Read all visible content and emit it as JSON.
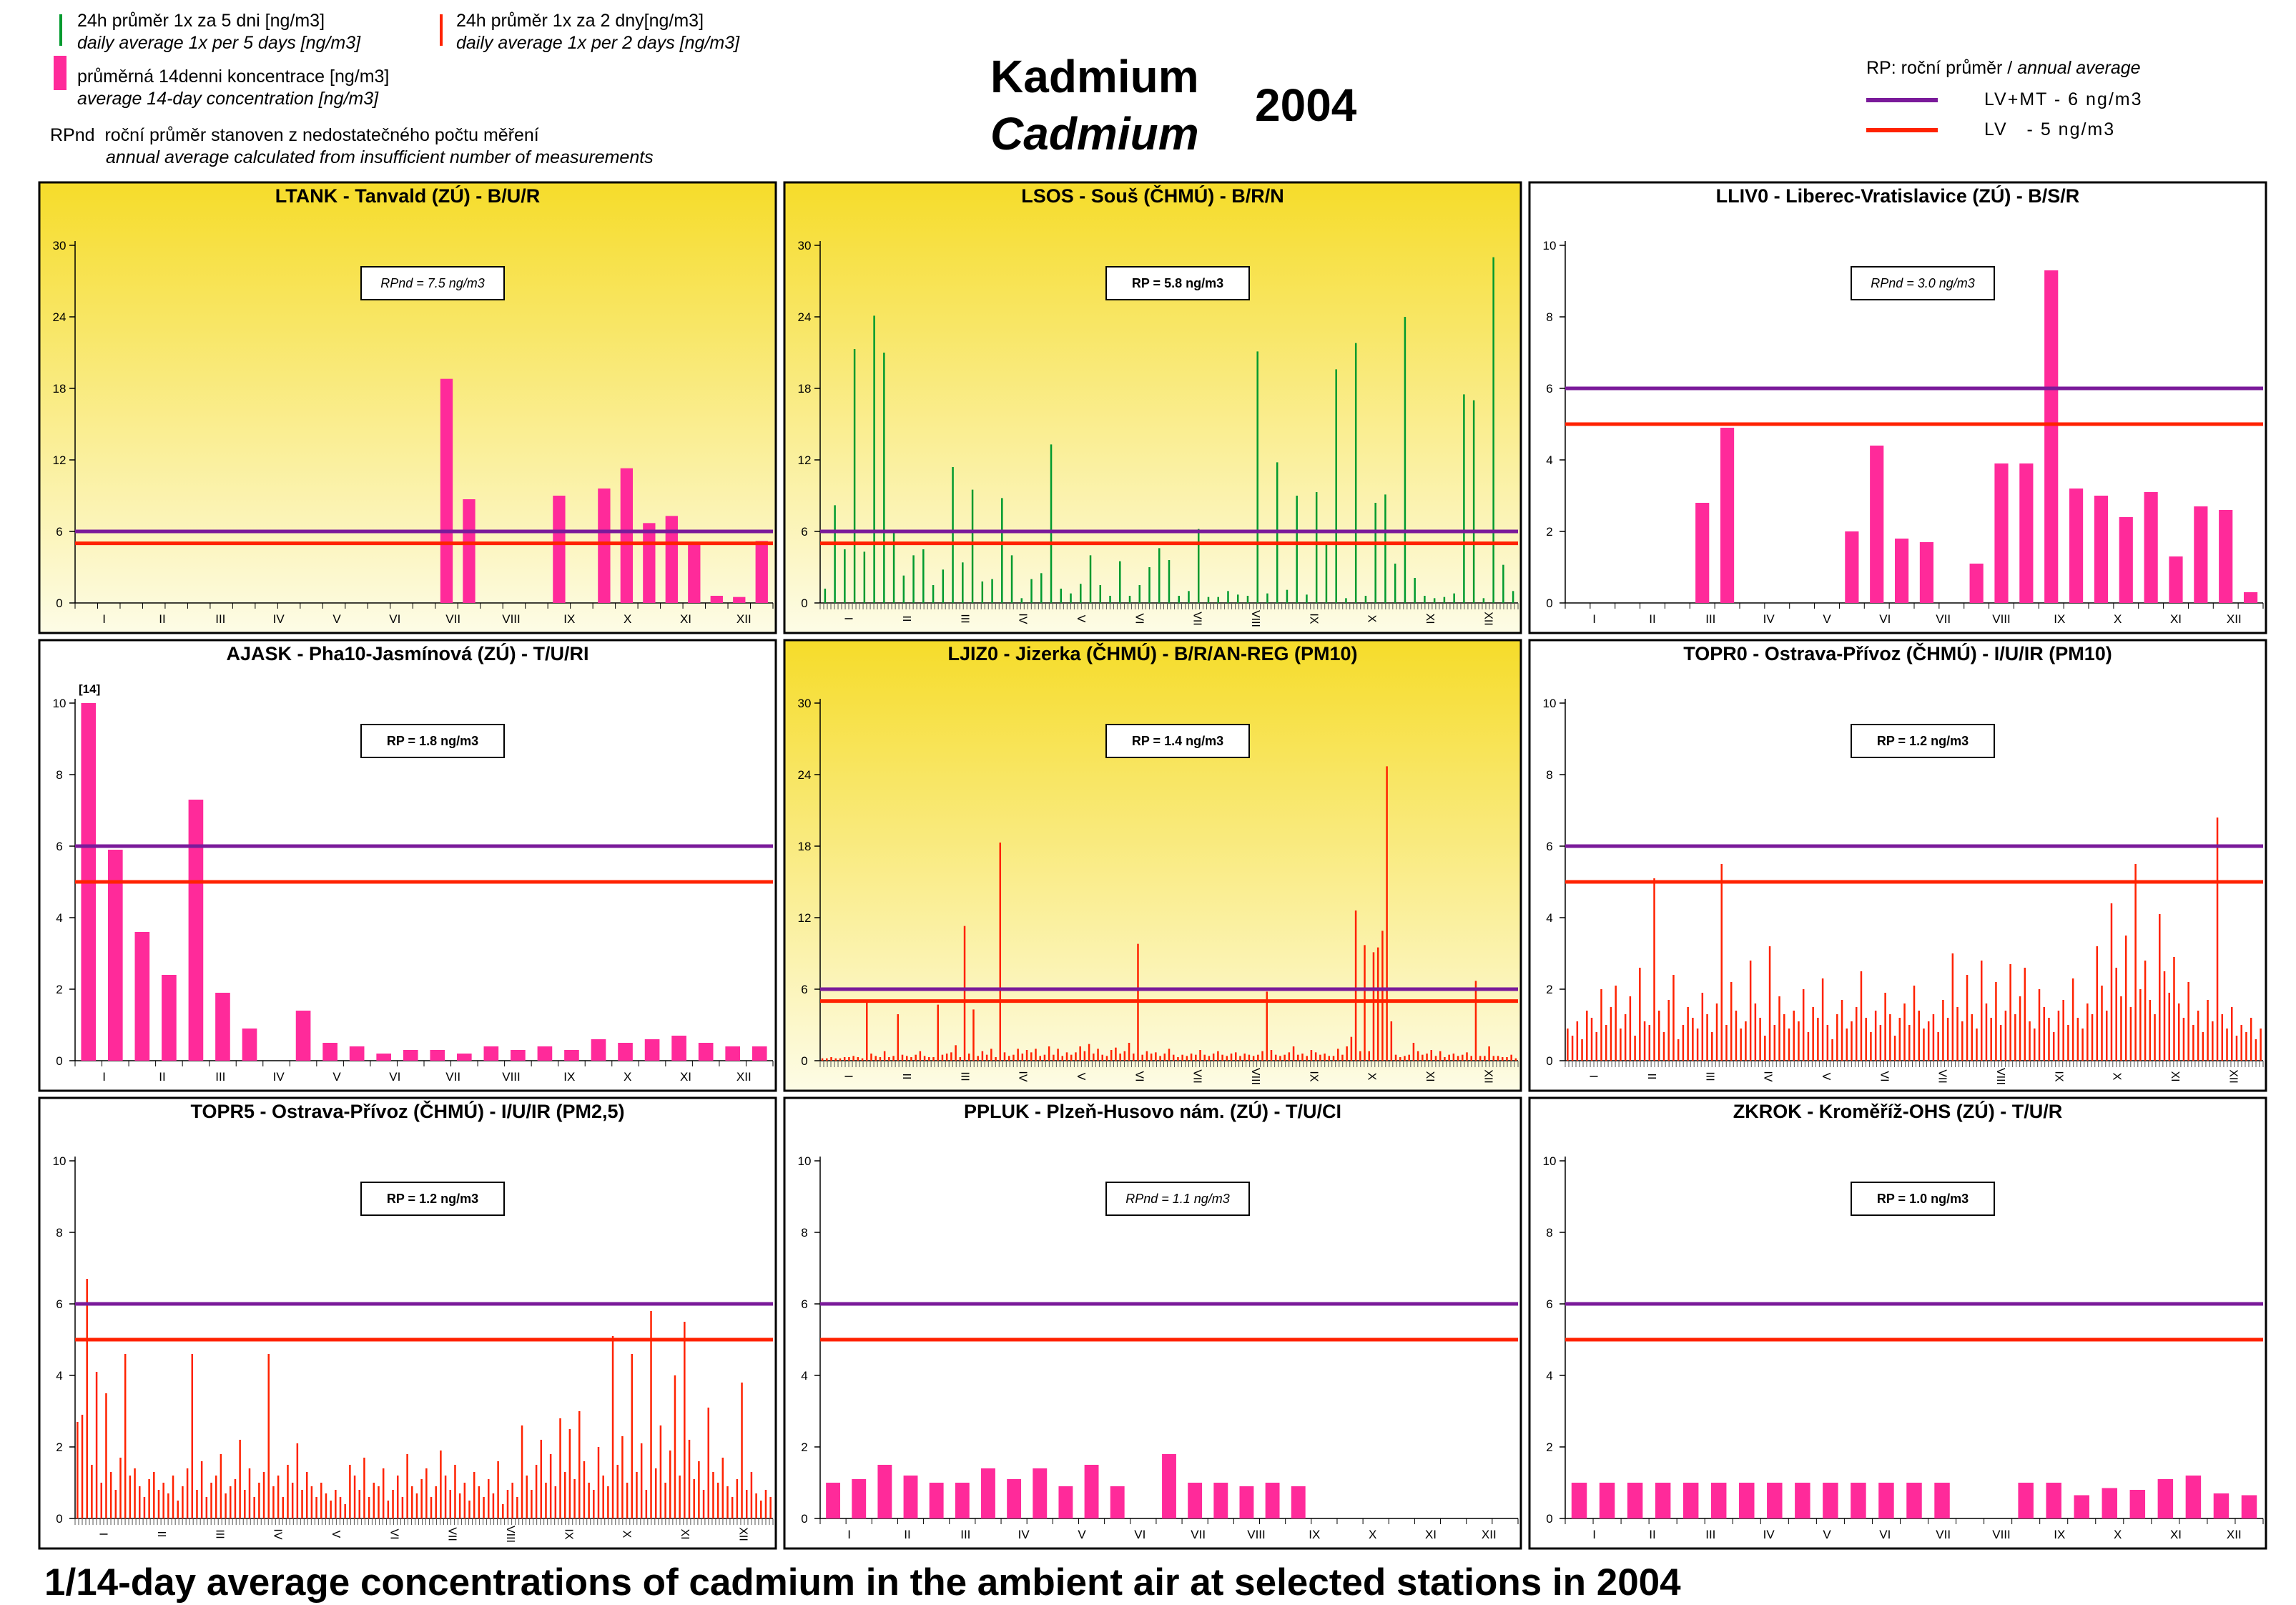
{
  "header": {
    "title_cz": "Kadmium",
    "title_en": "Cadmium",
    "year": "2004",
    "legend": {
      "green_line_cz": "24h průměr 1x za 5 dni [ng/m3]",
      "green_line_en": "daily average 1x per 5 days [ng/m3]",
      "red_line_cz": "24h průměr 1x za 2 dny[ng/m3]",
      "red_line_en": "daily average 1x per 2 days [ng/m3]",
      "bar_cz": "průměrná 14denni koncentrace [ng/m3]",
      "bar_en": "average 14-day concentration  [ng/m3]",
      "rpnd_label": "RPnd",
      "rpnd_cz": "roční průměr stanoven z nedostatečného počtu měření",
      "rpnd_en": "annual average calculated from insufficient number of measurements",
      "rp_title_cz": "RP: roční průměr",
      "rp_title_en": "annual average",
      "lv_mt_label": "LV+MT - 6 ng/m3",
      "lv_label": "LV   - 5 ng/m3"
    }
  },
  "footer": "1/14-day average concentrations of cadmium in the ambient air at selected stations in 2004",
  "colors": {
    "bar": "#ff2a9a",
    "daily_green": "#009a2e",
    "daily_red": "#ff2200",
    "lv_mt": "#7a1a9a",
    "lv": "#ff2200",
    "bg_yellow_top": "#f6dc2a",
    "bg_yellow_bottom": "#fdfce6"
  },
  "months": [
    "I",
    "II",
    "III",
    "IV",
    "V",
    "VI",
    "VII",
    "VIII",
    "IX",
    "X",
    "XI",
    "XII"
  ],
  "chart_data": [
    {
      "id": "ltank",
      "type": "bar",
      "title": "LTANK - Tanvald (ZÚ) - B/U/R",
      "rp_label": "RPnd = 7.5 ng/m3",
      "rp_italic": true,
      "background": "yellow",
      "ylim": [
        0,
        30
      ],
      "yticks": [
        0,
        6,
        12,
        18,
        24,
        30
      ],
      "limits": [
        6,
        5
      ],
      "bars": [
        null,
        null,
        null,
        null,
        null,
        null,
        null,
        null,
        null,
        null,
        null,
        null,
        null,
        null,
        null,
        null,
        18.8,
        8.7,
        null,
        null,
        null,
        9.0,
        null,
        9.6,
        11.3,
        6.7,
        7.3,
        5.0,
        0.6,
        0.5,
        5.2
      ]
    },
    {
      "id": "lsos",
      "type": "spike",
      "title": "LSOS - Souš (ČHMÚ) - B/R/N",
      "rp_label": "RP = 5.8 ng/m3",
      "rp_italic": false,
      "background": "yellow",
      "ylim": [
        0,
        30
      ],
      "yticks": [
        0,
        6,
        12,
        18,
        24,
        30
      ],
      "limits": [
        6,
        5
      ],
      "spike_color": "green",
      "label_rotate": true,
      "spikes": [
        1.2,
        8.2,
        4.5,
        21.3,
        4.3,
        24.1,
        21.0,
        6.0,
        2.3,
        4.0,
        4.5,
        1.5,
        2.8,
        11.4,
        3.4,
        9.5,
        1.8,
        2.0,
        8.8,
        4.0,
        0.4,
        2.0,
        2.5,
        13.3,
        1.2,
        0.8,
        1.6,
        4.0,
        1.5,
        0.6,
        3.5,
        0.6,
        1.5,
        3.0,
        4.6,
        3.6,
        0.6,
        1.0,
        6.2,
        0.5,
        0.5,
        1.0,
        0.7,
        0.6,
        21.1,
        0.8,
        11.8,
        1.1,
        9.0,
        0.7,
        9.3,
        5.0,
        19.6,
        0.4,
        21.8,
        0.6,
        8.4,
        9.1,
        3.3,
        24.0,
        2.1,
        0.6,
        0.4,
        0.5,
        0.8,
        17.5,
        17.0,
        0.4,
        29.0,
        3.2,
        1.0
      ]
    },
    {
      "id": "lliv0",
      "type": "bar",
      "title": "LLIV0 - Liberec-Vratislavice (ZÚ) - B/S/R",
      "rp_label": "RPnd = 3.0 ng/m3",
      "rp_italic": true,
      "background": "white",
      "ylim": [
        0,
        10
      ],
      "yticks": [
        0,
        2,
        4,
        6,
        8,
        10
      ],
      "limits": [
        6,
        5
      ],
      "bars": [
        null,
        null,
        null,
        null,
        null,
        2.8,
        4.9,
        null,
        null,
        null,
        null,
        2.0,
        4.4,
        1.8,
        1.7,
        null,
        1.1,
        3.9,
        3.9,
        9.3,
        3.2,
        3.0,
        2.4,
        3.1,
        1.3,
        2.7,
        2.6,
        0.3
      ]
    },
    {
      "id": "ajask",
      "type": "bar",
      "title": "AJASK - Pha10-Jasmínová (ZÚ) - T/U/RI",
      "rp_label": "RP = 1.8 ng/m3",
      "rp_italic": false,
      "background": "white",
      "ylim": [
        0,
        10
      ],
      "yticks": [
        0,
        2,
        4,
        6,
        8,
        10
      ],
      "limits": [
        6,
        5
      ],
      "annotation": "[14]",
      "bars": [
        14.0,
        5.9,
        3.6,
        2.4,
        7.3,
        1.9,
        0.9,
        null,
        1.4,
        0.5,
        0.4,
        0.2,
        0.3,
        0.3,
        0.2,
        0.4,
        0.3,
        0.4,
        0.3,
        0.6,
        0.5,
        0.6,
        0.7,
        0.5,
        0.4,
        0.4
      ]
    },
    {
      "id": "ljiz0",
      "type": "spike",
      "title": "LJIZ0 - Jizerka (ČHMÚ) - B/R/AN-REG (PM10)",
      "rp_label": "RP = 1.4 ng/m3",
      "rp_italic": false,
      "background": "yellow",
      "ylim": [
        0,
        30
      ],
      "yticks": [
        0,
        6,
        12,
        18,
        24,
        30
      ],
      "limits": [
        6,
        5
      ],
      "spike_color": "red",
      "label_rotate": true,
      "spikes": [
        0.2,
        0.2,
        0.3,
        0.2,
        0.2,
        0.3,
        0.3,
        0.4,
        0.3,
        0.2,
        5.0,
        0.6,
        0.4,
        0.3,
        0.8,
        0.3,
        0.4,
        3.9,
        0.5,
        0.4,
        0.3,
        0.5,
        0.8,
        0.4,
        0.3,
        0.3,
        4.7,
        0.5,
        0.6,
        0.7,
        1.3,
        0.3,
        11.3,
        0.6,
        4.3,
        0.4,
        0.8,
        0.5,
        1.0,
        0.3,
        18.3,
        0.7,
        0.4,
        0.5,
        1.0,
        0.6,
        0.9,
        0.7,
        1.0,
        0.4,
        0.5,
        1.2,
        0.5,
        1.0,
        0.4,
        0.7,
        0.5,
        0.7,
        1.2,
        0.8,
        1.4,
        0.6,
        1.0,
        0.5,
        0.4,
        0.9,
        1.1,
        0.6,
        0.8,
        1.5,
        0.6,
        9.8,
        0.5,
        0.8,
        0.6,
        0.7,
        0.4,
        0.6,
        1.0,
        0.5,
        0.3,
        0.5,
        0.4,
        0.6,
        0.5,
        0.9,
        0.5,
        0.4,
        0.6,
        0.8,
        0.5,
        0.4,
        0.6,
        0.7,
        0.4,
        0.6,
        0.5,
        0.4,
        0.5,
        0.8,
        5.8,
        0.9,
        0.5,
        0.4,
        0.5,
        0.7,
        1.2,
        0.5,
        0.6,
        0.4,
        0.9,
        0.7,
        0.5,
        0.6,
        0.4,
        0.4,
        1.0,
        0.5,
        1.2,
        2.0,
        12.6,
        0.8,
        9.7,
        0.8,
        9.1,
        9.5,
        10.9,
        24.7,
        3.3,
        0.5,
        0.3,
        0.4,
        0.5,
        1.5,
        0.8,
        0.5,
        0.6,
        0.9,
        0.4,
        0.8,
        0.3,
        0.5,
        0.6,
        0.4,
        0.5,
        0.7,
        0.4,
        6.7,
        0.4,
        0.4,
        1.2,
        0.4,
        0.4,
        0.3,
        0.3,
        0.5,
        0.2
      ]
    },
    {
      "id": "topr0",
      "type": "spike",
      "title": "TOPR0 - Ostrava-Přívoz (ČHMÚ) - I/U/IR (PM10)",
      "rp_label": "RP = 1.2 ng/m3",
      "rp_italic": false,
      "background": "white",
      "ylim": [
        0,
        10
      ],
      "yticks": [
        0,
        2,
        4,
        6,
        8,
        10
      ],
      "limits": [
        6,
        5
      ],
      "spike_color": "red",
      "label_rotate": true,
      "spikes": [
        0.9,
        0.7,
        1.1,
        0.6,
        1.4,
        1.2,
        0.8,
        2.0,
        1.0,
        1.5,
        2.1,
        0.9,
        1.3,
        1.8,
        0.7,
        2.6,
        1.1,
        1.0,
        5.1,
        1.4,
        0.8,
        1.7,
        2.4,
        0.6,
        1.0,
        1.5,
        1.2,
        0.9,
        1.9,
        1.3,
        0.8,
        1.6,
        5.5,
        1.0,
        2.2,
        1.4,
        0.9,
        1.1,
        2.8,
        1.6,
        1.2,
        0.7,
        3.2,
        1.0,
        1.8,
        1.3,
        0.9,
        1.4,
        1.1,
        2.0,
        0.8,
        1.5,
        1.2,
        2.3,
        1.0,
        0.6,
        1.3,
        1.7,
        0.9,
        1.1,
        1.5,
        2.5,
        1.2,
        0.8,
        1.4,
        1.0,
        1.9,
        1.3,
        0.7,
        1.2,
        1.6,
        1.0,
        2.1,
        1.4,
        0.9,
        1.1,
        1.3,
        0.8,
        1.7,
        1.2,
        3.0,
        1.5,
        1.1,
        2.4,
        1.3,
        0.9,
        2.8,
        1.6,
        1.2,
        2.2,
        1.0,
        1.4,
        2.7,
        1.3,
        1.8,
        2.6,
        1.1,
        0.9,
        2.0,
        1.5,
        1.2,
        0.8,
        1.4,
        1.7,
        1.0,
        2.3,
        1.2,
        0.9,
        1.6,
        1.3,
        3.2,
        2.1,
        1.4,
        4.4,
        2.6,
        1.8,
        3.5,
        1.5,
        5.5,
        2.0,
        2.8,
        1.7,
        1.3,
        4.1,
        2.5,
        1.9,
        2.9,
        1.6,
        1.2,
        2.2,
        1.0,
        1.4,
        0.8,
        1.7,
        1.1,
        6.8,
        1.3,
        0.9,
        1.5,
        0.7,
        1.0,
        0.8,
        1.2,
        0.6,
        0.9
      ]
    },
    {
      "id": "topr5",
      "type": "spike",
      "title": "TOPR5 - Ostrava-Přívoz (ČHMÚ) - I/U/IR (PM2,5)",
      "rp_label": "RP = 1.2 ng/m3",
      "rp_italic": false,
      "background": "white",
      "ylim": [
        0,
        10
      ],
      "yticks": [
        0,
        2,
        4,
        6,
        8,
        10
      ],
      "limits": [
        6,
        5
      ],
      "spike_color": "red",
      "label_rotate": true,
      "spikes": [
        2.7,
        2.9,
        6.7,
        1.5,
        4.1,
        1.0,
        3.5,
        1.3,
        0.8,
        1.7,
        4.6,
        1.2,
        1.4,
        0.9,
        0.6,
        1.1,
        1.3,
        0.8,
        1.0,
        0.7,
        1.2,
        0.5,
        0.9,
        1.4,
        4.6,
        0.8,
        1.6,
        0.6,
        1.0,
        1.2,
        1.8,
        0.7,
        0.9,
        1.1,
        2.2,
        0.8,
        1.4,
        0.6,
        1.0,
        1.3,
        4.6,
        0.9,
        1.2,
        0.6,
        1.5,
        1.0,
        2.1,
        0.8,
        1.3,
        0.9,
        0.6,
        1.0,
        0.7,
        0.5,
        0.8,
        0.6,
        0.4,
        1.5,
        1.2,
        0.8,
        1.7,
        0.6,
        1.0,
        0.9,
        1.4,
        0.5,
        0.8,
        1.2,
        0.6,
        1.8,
        0.9,
        0.7,
        1.1,
        1.4,
        0.6,
        0.9,
        1.9,
        1.2,
        0.8,
        1.5,
        0.7,
        1.0,
        0.5,
        1.3,
        0.9,
        0.6,
        1.1,
        0.7,
        1.6,
        0.4,
        0.8,
        1.0,
        0.6,
        2.6,
        1.2,
        0.8,
        1.5,
        2.2,
        1.0,
        1.8,
        0.9,
        2.8,
        1.3,
        2.5,
        1.1,
        3.0,
        1.6,
        1.0,
        0.8,
        2.0,
        1.2,
        0.9,
        5.1,
        1.5,
        2.3,
        1.0,
        4.6,
        1.3,
        2.1,
        0.8,
        5.8,
        1.4,
        2.6,
        1.0,
        1.9,
        4.0,
        1.2,
        5.5,
        2.2,
        1.1,
        1.6,
        0.8,
        3.1,
        1.3,
        1.0,
        1.7,
        0.9,
        0.6,
        1.1,
        3.8,
        0.8,
        1.3,
        0.7,
        0.5,
        0.8,
        0.6
      ]
    },
    {
      "id": "ppluk",
      "type": "bar",
      "title": "PPLUK - Plzeň-Husovo nám. (ZÚ) - T/U/CI",
      "rp_label": "RPnd = 1.1 ng/m3",
      "rp_italic": true,
      "background": "white",
      "ylim": [
        0,
        10
      ],
      "yticks": [
        0,
        2,
        4,
        6,
        8,
        10
      ],
      "limits": [
        6,
        5
      ],
      "bars": [
        1.0,
        1.1,
        1.5,
        1.2,
        1.0,
        1.0,
        1.4,
        1.1,
        1.4,
        0.9,
        1.5,
        0.9,
        null,
        1.8,
        1.0,
        1.0,
        0.9,
        1.0,
        0.9,
        null,
        null,
        null,
        null,
        null,
        null,
        null,
        null
      ]
    },
    {
      "id": "zkrok",
      "type": "bar",
      "title": "ZKROK - Kroměříž-OHS (ZÚ) - T/U/R",
      "rp_label": "RP = 1.0 ng/m3",
      "rp_italic": false,
      "background": "white",
      "ylim": [
        0,
        10
      ],
      "yticks": [
        0,
        2,
        4,
        6,
        8,
        10
      ],
      "limits": [
        6,
        5
      ],
      "bars": [
        1.0,
        1.0,
        1.0,
        1.0,
        1.0,
        1.0,
        1.0,
        1.0,
        1.0,
        1.0,
        1.0,
        1.0,
        1.0,
        1.0,
        null,
        null,
        1.0,
        1.0,
        0.65,
        0.85,
        0.8,
        1.1,
        1.2,
        0.7,
        0.65
      ]
    }
  ]
}
